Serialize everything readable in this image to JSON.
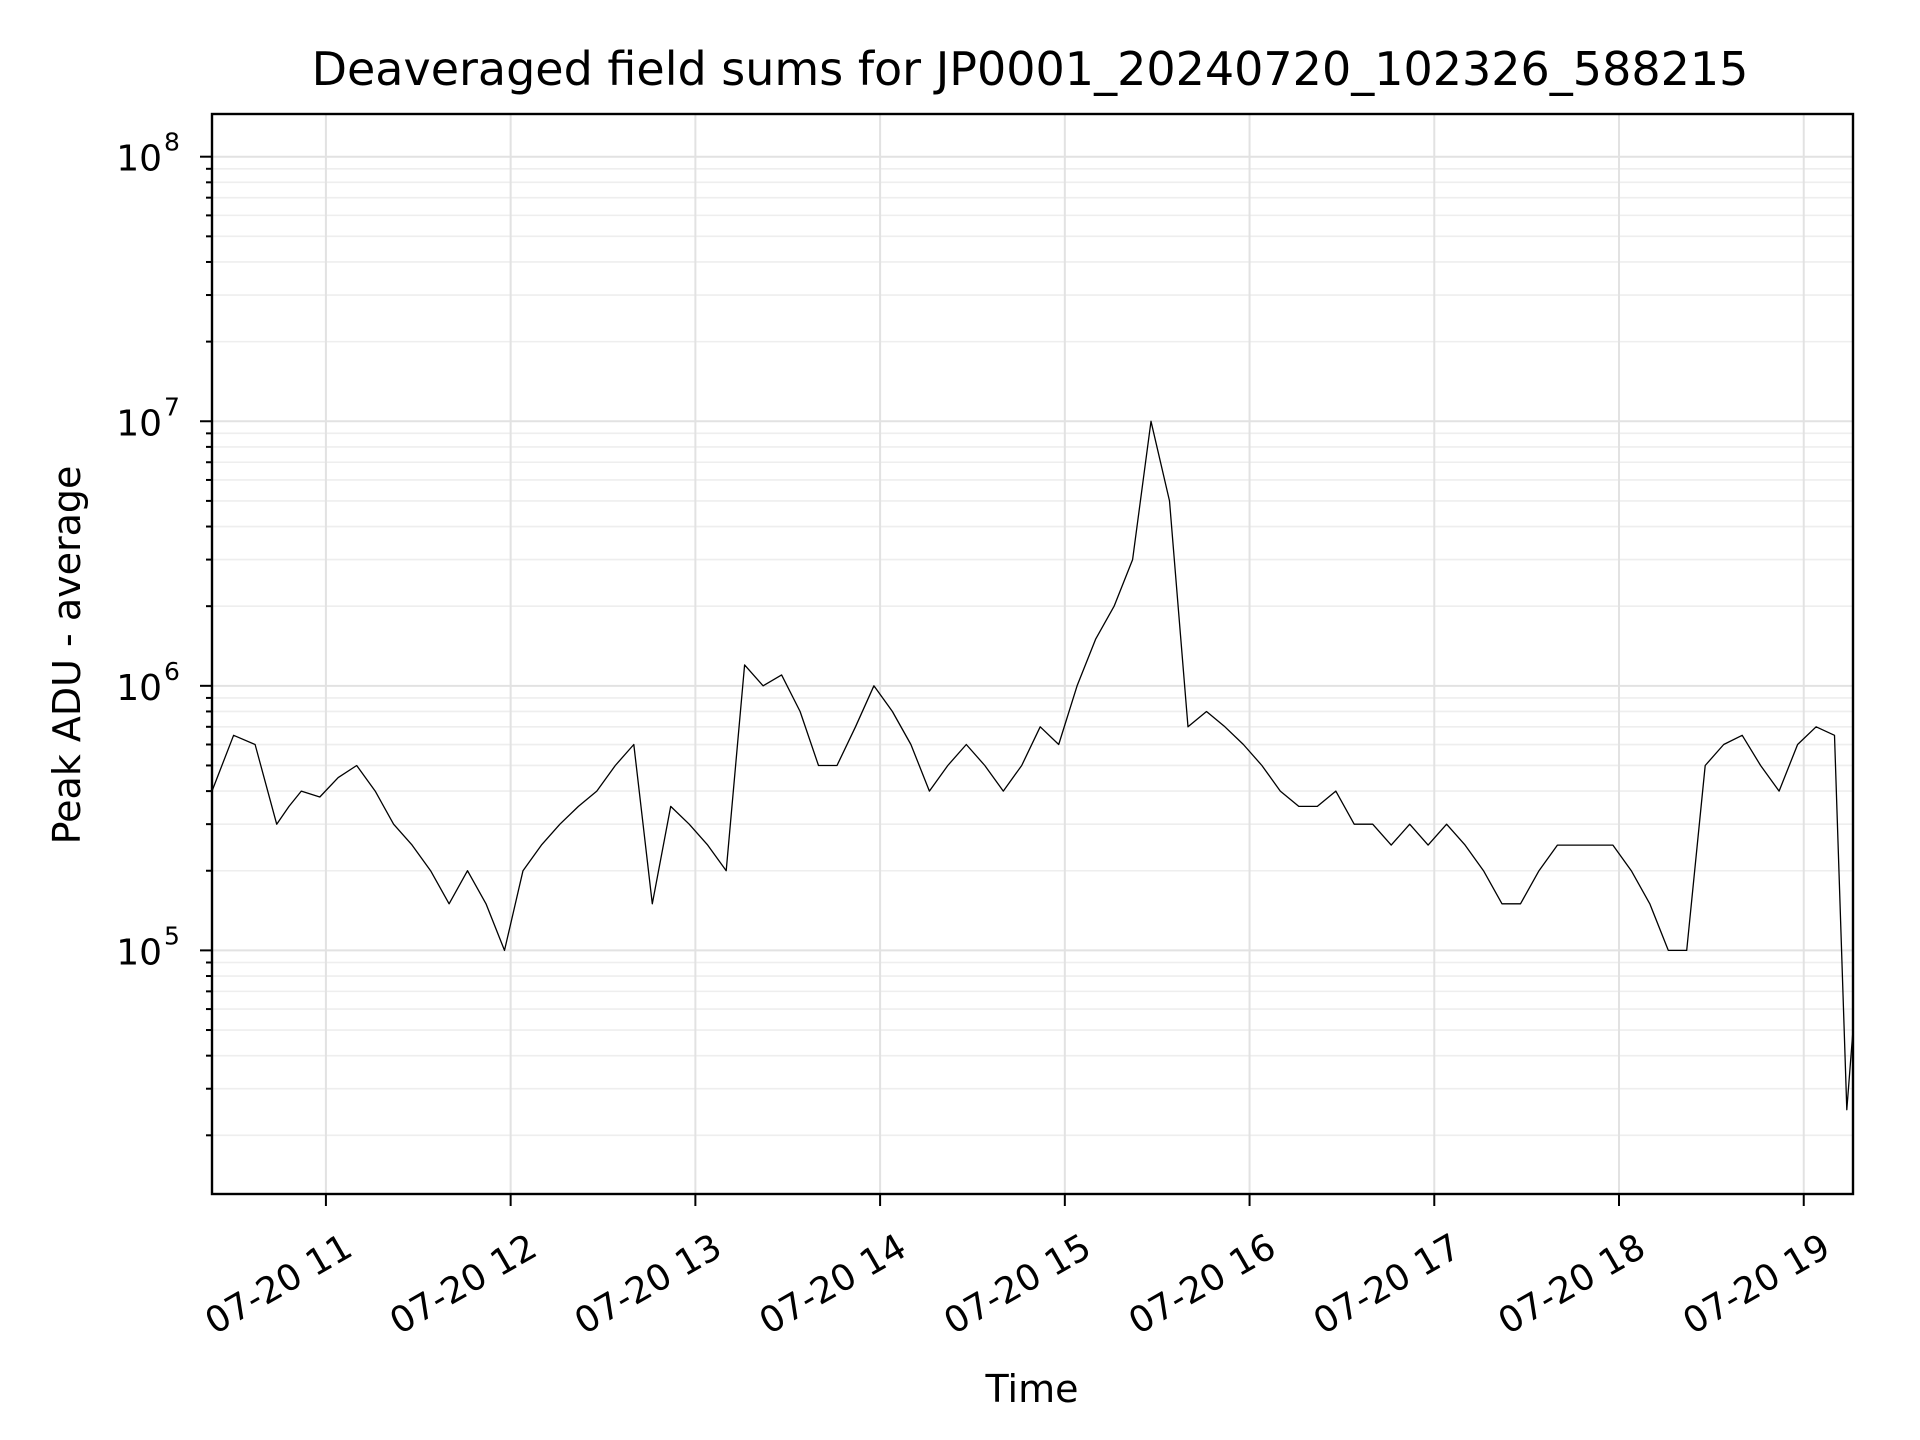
{
  "chart_data": {
    "type": "line",
    "title": "Deaveraged field sums for JP0001_20240720_102326_588215",
    "xlabel": "Time",
    "ylabel": "Peak ADU - average",
    "y_scale": "log",
    "ylim": [
      12000,
      145000000
    ],
    "xlim": [
      "2024-07-20 10:23",
      "2024-07-20 19:16"
    ],
    "x_ticks": [
      "2024-07-20 11:00",
      "2024-07-20 12:00",
      "2024-07-20 13:00",
      "2024-07-20 14:00",
      "2024-07-20 15:00",
      "2024-07-20 16:00",
      "2024-07-20 17:00",
      "2024-07-20 18:00",
      "2024-07-20 19:00"
    ],
    "x_tick_labels": [
      "07-20 11",
      "07-20 12",
      "07-20 13",
      "07-20 14",
      "07-20 15",
      "07-20 16",
      "07-20 17",
      "07-20 18",
      "07-20 19"
    ],
    "y_ticks": [
      100000,
      1000000,
      10000000,
      100000000
    ],
    "y_tick_base": "10",
    "y_tick_exponents": [
      "5",
      "6",
      "7",
      "8"
    ],
    "grid": true,
    "series": [
      {
        "color": "#000000",
        "x": [
          "2024-07-20 10:23",
          "2024-07-20 10:30",
          "2024-07-20 10:37",
          "2024-07-20 10:44",
          "2024-07-20 10:48",
          "2024-07-20 10:52",
          "2024-07-20 10:58",
          "2024-07-20 11:04",
          "2024-07-20 11:10",
          "2024-07-20 11:16",
          "2024-07-20 11:22",
          "2024-07-20 11:28",
          "2024-07-20 11:34",
          "2024-07-20 11:40",
          "2024-07-20 11:46",
          "2024-07-20 11:52",
          "2024-07-20 11:58",
          "2024-07-20 12:04",
          "2024-07-20 12:10",
          "2024-07-20 12:16",
          "2024-07-20 12:22",
          "2024-07-20 12:28",
          "2024-07-20 12:34",
          "2024-07-20 12:40",
          "2024-07-20 12:46",
          "2024-07-20 12:52",
          "2024-07-20 12:58",
          "2024-07-20 13:04",
          "2024-07-20 13:10",
          "2024-07-20 13:16",
          "2024-07-20 13:22",
          "2024-07-20 13:28",
          "2024-07-20 13:34",
          "2024-07-20 13:40",
          "2024-07-20 13:46",
          "2024-07-20 13:52",
          "2024-07-20 13:58",
          "2024-07-20 14:04",
          "2024-07-20 14:10",
          "2024-07-20 14:16",
          "2024-07-20 14:22",
          "2024-07-20 14:28",
          "2024-07-20 14:34",
          "2024-07-20 14:40",
          "2024-07-20 14:46",
          "2024-07-20 14:52",
          "2024-07-20 14:58",
          "2024-07-20 15:04",
          "2024-07-20 15:10",
          "2024-07-20 15:16",
          "2024-07-20 15:22",
          "2024-07-20 15:28",
          "2024-07-20 15:34",
          "2024-07-20 15:40",
          "2024-07-20 15:46",
          "2024-07-20 15:52",
          "2024-07-20 15:58",
          "2024-07-20 16:04",
          "2024-07-20 16:10",
          "2024-07-20 16:16",
          "2024-07-20 16:22",
          "2024-07-20 16:28",
          "2024-07-20 16:34",
          "2024-07-20 16:40",
          "2024-07-20 16:46",
          "2024-07-20 16:52",
          "2024-07-20 16:58",
          "2024-07-20 17:04",
          "2024-07-20 17:10",
          "2024-07-20 17:16",
          "2024-07-20 17:22",
          "2024-07-20 17:28",
          "2024-07-20 17:34",
          "2024-07-20 17:40",
          "2024-07-20 17:46",
          "2024-07-20 17:52",
          "2024-07-20 17:58",
          "2024-07-20 18:04",
          "2024-07-20 18:10",
          "2024-07-20 18:16",
          "2024-07-20 18:22",
          "2024-07-20 18:28",
          "2024-07-20 18:34",
          "2024-07-20 18:40",
          "2024-07-20 18:46",
          "2024-07-20 18:52",
          "2024-07-20 18:58",
          "2024-07-20 19:04",
          "2024-07-20 19:10",
          "2024-07-20 19:14",
          "2024-07-20 19:16"
        ],
        "y": [
          400000,
          650000,
          600000,
          300000,
          350000,
          400000,
          380000,
          450000,
          500000,
          400000,
          300000,
          250000,
          200000,
          150000,
          200000,
          150000,
          100000,
          200000,
          250000,
          300000,
          350000,
          400000,
          500000,
          600000,
          150000,
          350000,
          300000,
          250000,
          200000,
          1200000,
          1000000,
          1100000,
          800000,
          500000,
          500000,
          700000,
          1000000,
          800000,
          600000,
          400000,
          500000,
          600000,
          500000,
          400000,
          500000,
          700000,
          600000,
          1000000,
          1500000,
          2000000,
          3000000,
          10000000,
          5000000,
          700000,
          800000,
          700000,
          600000,
          500000,
          400000,
          350000,
          350000,
          400000,
          300000,
          300000,
          250000,
          300000,
          250000,
          300000,
          250000,
          200000,
          150000,
          150000,
          200000,
          250000,
          250000,
          250000,
          250000,
          200000,
          150000,
          100000,
          100000,
          500000,
          600000,
          650000,
          500000,
          400000,
          600000,
          700000,
          650000,
          25000,
          50000
        ]
      }
    ]
  }
}
